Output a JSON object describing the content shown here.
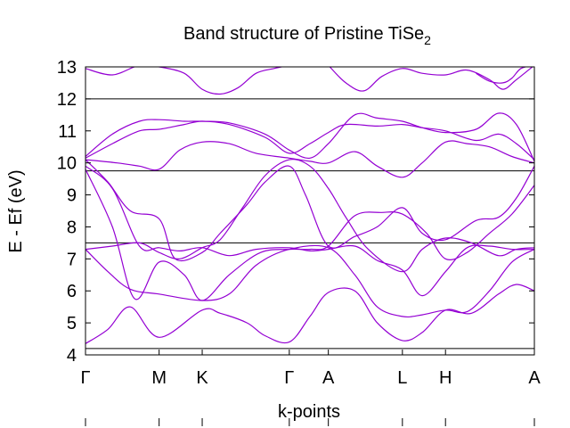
{
  "chart_data": {
    "type": "line",
    "title": "Band structure of Pristine TiSe",
    "title_subscript": "2",
    "xlabel": "k-points",
    "ylabel": "E - Ef (eV)",
    "ylim": [
      4,
      13
    ],
    "yticks": [
      4,
      5,
      6,
      7,
      8,
      9,
      10,
      11,
      12,
      13
    ],
    "x_ticks": [
      {
        "label": "Γ",
        "x": 0
      },
      {
        "label": "M",
        "x": 0.164
      },
      {
        "label": "K",
        "x": 0.26
      },
      {
        "label": "Γ",
        "x": 0.454
      },
      {
        "label": "A",
        "x": 0.541
      },
      {
        "label": "L",
        "x": 0.706
      },
      {
        "label": "H",
        "x": 0.802
      },
      {
        "label": "A",
        "x": 1.0
      }
    ],
    "grid": false,
    "band_color": "#9400d3",
    "reference_lines_color": "#000000",
    "reference_lines": [
      4.2,
      7.5,
      9.75,
      12.0
    ],
    "series": [
      {
        "x": [
          0,
          0.05,
          0.1,
          0.164,
          0.26,
          0.3,
          0.36,
          0.4,
          0.454,
          0.5,
          0.541,
          0.6,
          0.65,
          0.706,
          0.75,
          0.802,
          0.86,
          0.92,
          0.96,
          1.0
        ],
        "values": [
          4.35,
          4.8,
          5.5,
          4.55,
          5.4,
          5.3,
          5.0,
          4.6,
          4.4,
          5.2,
          5.95,
          6.0,
          5.0,
          4.45,
          4.7,
          5.4,
          5.3,
          5.9,
          6.2,
          6.0
        ]
      },
      {
        "x": [
          0,
          0.05,
          0.1,
          0.164,
          0.26,
          0.32,
          0.38,
          0.454,
          0.541,
          0.6,
          0.65,
          0.706,
          0.75,
          0.802,
          0.85,
          0.9,
          0.95,
          1.0
        ],
        "values": [
          7.3,
          6.6,
          6.05,
          5.9,
          5.7,
          5.9,
          6.8,
          7.3,
          7.35,
          6.5,
          5.5,
          5.2,
          5.25,
          5.4,
          5.35,
          6.0,
          6.9,
          7.3
        ]
      },
      {
        "x": [
          0,
          0.06,
          0.11,
          0.164,
          0.22,
          0.26,
          0.32,
          0.39,
          0.454,
          0.5,
          0.541,
          0.6,
          0.66,
          0.706,
          0.76,
          0.802,
          0.85,
          0.9,
          0.95,
          1.0
        ],
        "values": [
          9.8,
          8.0,
          5.75,
          6.9,
          6.5,
          5.7,
          6.5,
          7.2,
          7.3,
          7.3,
          7.4,
          8.35,
          8.45,
          8.4,
          7.8,
          7.0,
          7.2,
          7.8,
          8.4,
          9.3
        ]
      },
      {
        "x": [
          0,
          0.05,
          0.1,
          0.164,
          0.2,
          0.26,
          0.3,
          0.36,
          0.4,
          0.454,
          0.49,
          0.541,
          0.6,
          0.65,
          0.706,
          0.75,
          0.802,
          0.87,
          0.92,
          0.96,
          1.0
        ],
        "values": [
          10.1,
          9.4,
          8.5,
          8.25,
          7.0,
          7.2,
          7.8,
          8.7,
          9.4,
          9.9,
          9.0,
          7.4,
          7.7,
          8.0,
          8.6,
          7.8,
          7.6,
          8.2,
          8.3,
          8.9,
          9.9
        ]
      },
      {
        "x": [
          0,
          0.06,
          0.12,
          0.164,
          0.21,
          0.26,
          0.3,
          0.35,
          0.4,
          0.454,
          0.5,
          0.541,
          0.58,
          0.63,
          0.706,
          0.75,
          0.802,
          0.86,
          0.92,
          0.96,
          1.0
        ],
        "values": [
          7.3,
          7.4,
          7.5,
          7.2,
          7.0,
          7.35,
          7.6,
          8.6,
          9.6,
          10.1,
          9.9,
          9.2,
          8.3,
          7.3,
          6.6,
          7.3,
          7.65,
          7.5,
          7.1,
          7.3,
          7.35
        ]
      },
      {
        "x": [
          0,
          0.06,
          0.12,
          0.164,
          0.21,
          0.26,
          0.32,
          0.38,
          0.454,
          0.5,
          0.541,
          0.6,
          0.65,
          0.706,
          0.75,
          0.802,
          0.85,
          0.9,
          0.95,
          1.0
        ],
        "values": [
          9.9,
          9.2,
          7.4,
          7.35,
          7.25,
          7.35,
          7.1,
          7.3,
          7.35,
          7.25,
          7.3,
          7.4,
          6.95,
          6.65,
          5.85,
          6.6,
          7.35,
          7.4,
          7.3,
          7.3
        ]
      },
      {
        "x": [
          0,
          0.07,
          0.12,
          0.164,
          0.21,
          0.26,
          0.32,
          0.38,
          0.454,
          0.5,
          0.541,
          0.6,
          0.65,
          0.706,
          0.75,
          0.802,
          0.85,
          0.9,
          0.95,
          1.0
        ],
        "values": [
          10.1,
          10.0,
          9.9,
          9.8,
          10.4,
          10.65,
          10.6,
          10.3,
          10.15,
          10.05,
          10.0,
          10.35,
          9.9,
          9.55,
          10.0,
          10.65,
          10.6,
          10.5,
          10.2,
          10.0
        ]
      },
      {
        "x": [
          0,
          0.06,
          0.12,
          0.164,
          0.22,
          0.26,
          0.32,
          0.4,
          0.454,
          0.5,
          0.541,
          0.58,
          0.65,
          0.706,
          0.75,
          0.802,
          0.87,
          0.92,
          0.96,
          1.0
        ],
        "values": [
          10.15,
          10.6,
          11.0,
          11.05,
          11.2,
          11.3,
          11.2,
          10.8,
          10.3,
          10.6,
          10.95,
          11.2,
          11.15,
          11.2,
          11.1,
          11.0,
          10.7,
          10.9,
          10.6,
          10.1
        ]
      },
      {
        "x": [
          0,
          0.06,
          0.12,
          0.164,
          0.22,
          0.26,
          0.32,
          0.4,
          0.454,
          0.5,
          0.541,
          0.6,
          0.65,
          0.706,
          0.75,
          0.802,
          0.87,
          0.92,
          0.96,
          1.0
        ],
        "values": [
          10.2,
          10.9,
          11.3,
          11.35,
          11.3,
          11.3,
          11.25,
          10.9,
          10.4,
          10.15,
          10.6,
          11.5,
          11.4,
          11.3,
          11.1,
          10.95,
          11.05,
          11.55,
          11.2,
          10.05
        ]
      },
      {
        "x": [
          0,
          0.06,
          0.12,
          0.164,
          0.22,
          0.26,
          0.3,
          0.34,
          0.38,
          0.42,
          0.454
        ],
        "values": [
          12.95,
          12.75,
          13.05,
          13.0,
          12.8,
          12.3,
          12.15,
          12.35,
          12.8,
          12.95,
          13.05
        ]
      },
      {
        "x": [
          0.541,
          0.58,
          0.62,
          0.66,
          0.706,
          0.75,
          0.802,
          0.85,
          0.9,
          0.93,
          0.96,
          1.0
        ],
        "values": [
          13.05,
          12.5,
          12.25,
          12.7,
          12.95,
          12.8,
          12.75,
          12.9,
          12.6,
          12.3,
          12.6,
          13.05
        ]
      },
      {
        "x": [
          0.87,
          0.9,
          0.93,
          0.95,
          0.97,
          1.0
        ],
        "values": [
          12.8,
          12.55,
          12.5,
          12.65,
          12.95,
          13.05
        ]
      }
    ]
  }
}
